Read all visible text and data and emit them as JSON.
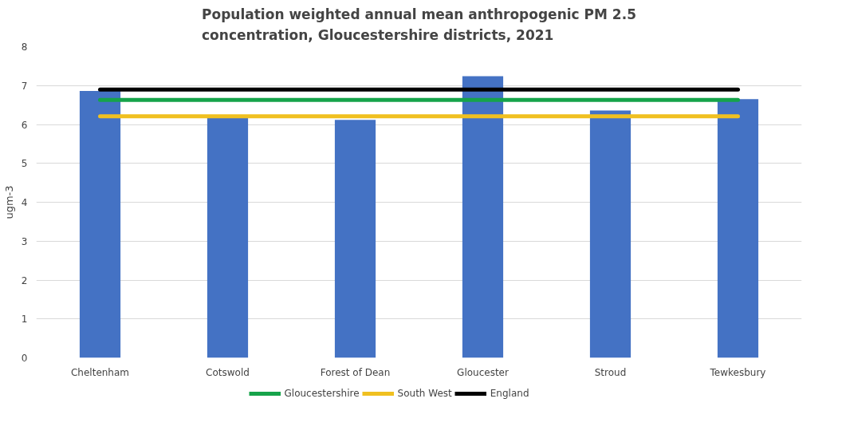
{
  "chart_data": {
    "type": "bar",
    "title": "Population weighted annual mean anthropogenic PM 2.5 concentration, Gloucestershire districts, 2021",
    "ylabel": "ugm-3",
    "categories": [
      "Cheltenham",
      "Cotswold",
      "Forest of Dean",
      "Gloucester",
      "Stroud",
      "Tewkesbury"
    ],
    "series": [
      {
        "color": "#4472c4",
        "values": [
          6.86,
          6.18,
          6.12,
          7.24,
          6.36,
          6.65
        ]
      },
      {
        "name": "Gloucestershire",
        "type": "line",
        "color": "#16a34a",
        "values": [
          6.63,
          6.63,
          6.63,
          6.63,
          6.63,
          6.63
        ]
      },
      {
        "name": "South West",
        "type": "line",
        "color": "#f0c020",
        "values": [
          6.21,
          6.21,
          6.21,
          6.21,
          6.21,
          6.21
        ]
      },
      {
        "name": "England",
        "type": "line",
        "color": "#000000",
        "values": [
          6.9,
          6.9,
          6.9,
          6.9,
          6.9,
          6.9
        ]
      }
    ],
    "ylim": [
      0,
      8
    ],
    "yticks": [
      0,
      1,
      2,
      3,
      4,
      5,
      6,
      7,
      8
    ],
    "grid": "y",
    "legend": "bottom"
  }
}
